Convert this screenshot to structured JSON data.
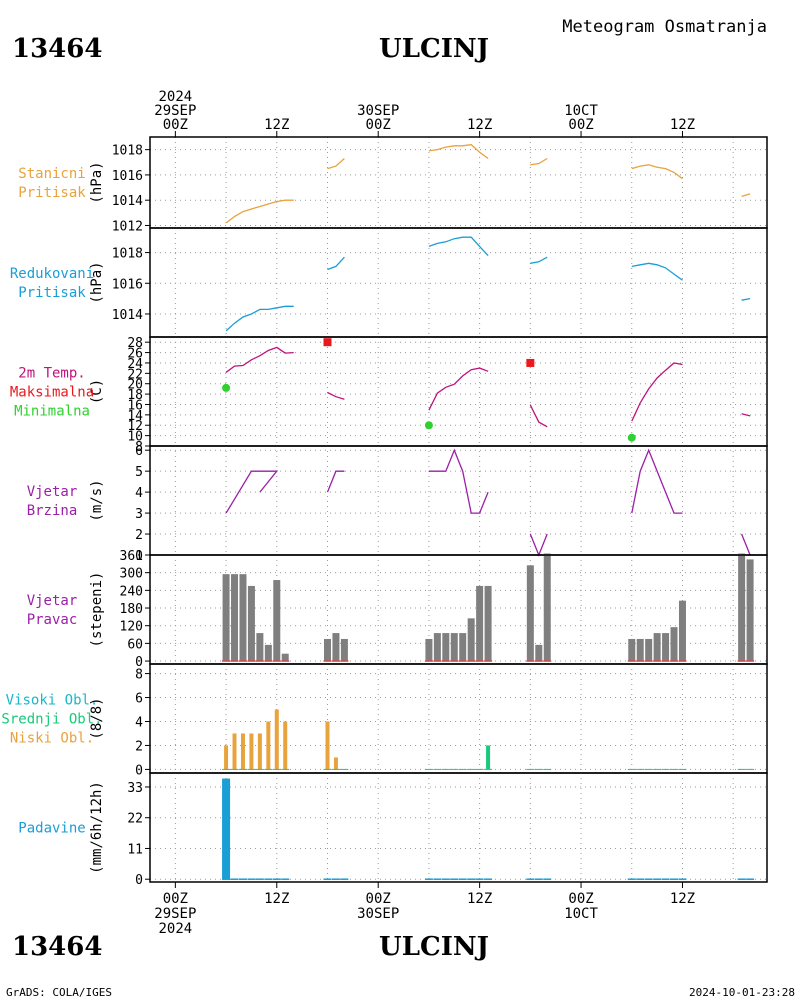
{
  "header": {
    "station_id": "13464",
    "station_name": "ULCINJ",
    "product": "Meteogram Osmatranja"
  },
  "footer": {
    "station_id": "13464",
    "station_name": "ULCINJ",
    "credit": "GrADS: COLA/IGES",
    "timestamp": "2024-10-01-23:28"
  },
  "time_axis": {
    "year": "2024",
    "top": [
      {
        "hour": 0,
        "lines": [
          "2024",
          "29SEP",
          "00Z"
        ]
      },
      {
        "hour": 12,
        "lines": [
          "12Z"
        ]
      },
      {
        "hour": 24,
        "lines": [
          "30SEP",
          "00Z"
        ]
      },
      {
        "hour": 36,
        "lines": [
          "12Z"
        ]
      },
      {
        "hour": 48,
        "lines": [
          "10CT",
          "00Z"
        ]
      },
      {
        "hour": 60,
        "lines": [
          "12Z"
        ]
      }
    ],
    "bottom": [
      {
        "hour": 0,
        "lines": [
          "00Z",
          "29SEP",
          "2024"
        ]
      },
      {
        "hour": 12,
        "lines": [
          "12Z"
        ]
      },
      {
        "hour": 24,
        "lines": [
          "00Z",
          "30SEP"
        ]
      },
      {
        "hour": 36,
        "lines": [
          "12Z"
        ]
      },
      {
        "hour": 48,
        "lines": [
          "00Z",
          "10CT"
        ]
      },
      {
        "hour": 60,
        "lines": [
          "12Z"
        ]
      }
    ],
    "xlim_hours": [
      -3,
      70
    ],
    "grid_hours": [
      0,
      6,
      12,
      18,
      24,
      30,
      36,
      42,
      48,
      54,
      60,
      66
    ]
  },
  "colors": {
    "station_pressure": "#e8a33d",
    "reduced_pressure": "#1a9ed6",
    "temperature": "#c0137c",
    "tmax": "#e8191e",
    "tmin": "#2fd12f",
    "wind": "#9b1fa8",
    "wind_dir_bar": "#7f7f7f",
    "wind_dir_base": "#d84848",
    "cloud_high": "#1ab7c9",
    "cloud_mid": "#18c97c",
    "cloud_low": "#e8a33d",
    "precip": "#1a9ed6"
  },
  "chart_data": [
    {
      "type": "line",
      "panel": "station_pressure",
      "label_lines": [
        "Stanicni",
        "Pritisak"
      ],
      "ylabel": "(hPa)",
      "ylim": [
        1011.8,
        1019
      ],
      "yticks": [
        1012,
        1014,
        1016,
        1018
      ],
      "series": [
        {
          "values": [
            [
              6,
              1012.2
            ],
            [
              7,
              1012.7
            ],
            [
              8,
              1013.1
            ],
            [
              9,
              1013.3
            ],
            [
              10,
              1013.5
            ],
            [
              11,
              1013.7
            ],
            [
              12,
              1013.9
            ],
            [
              13,
              1014.0
            ],
            [
              14,
              1014.0
            ]
          ]
        },
        {
          "values": [
            [
              18,
              1016.5
            ],
            [
              19,
              1016.7
            ],
            [
              20,
              1017.3
            ]
          ]
        },
        {
          "values": [
            [
              30,
              1017.9
            ],
            [
              31,
              1018.0
            ],
            [
              32,
              1018.2
            ],
            [
              33,
              1018.3
            ],
            [
              34,
              1018.3
            ],
            [
              35,
              1018.4
            ],
            [
              36,
              1017.8
            ],
            [
              37,
              1017.3
            ]
          ]
        },
        {
          "values": [
            [
              42,
              1016.8
            ],
            [
              43,
              1016.9
            ],
            [
              44,
              1017.3
            ]
          ]
        },
        {
          "values": [
            [
              54,
              1016.5
            ],
            [
              55,
              1016.7
            ],
            [
              56,
              1016.8
            ],
            [
              57,
              1016.6
            ],
            [
              58,
              1016.5
            ],
            [
              59,
              1016.2
            ],
            [
              60,
              1015.7
            ]
          ]
        },
        {
          "values": [
            [
              67,
              1014.3
            ],
            [
              68,
              1014.5
            ]
          ]
        }
      ]
    },
    {
      "type": "line",
      "panel": "reduced_pressure",
      "label_lines": [
        "Redukovani",
        "Pritisak"
      ],
      "ylabel": "(hPa)",
      "ylim": [
        1012.5,
        1019.6
      ],
      "yticks": [
        1014,
        1016,
        1018
      ],
      "series": [
        {
          "values": [
            [
              6,
              1012.9
            ],
            [
              7,
              1013.4
            ],
            [
              8,
              1013.8
            ],
            [
              9,
              1014.0
            ],
            [
              10,
              1014.3
            ],
            [
              11,
              1014.3
            ],
            [
              12,
              1014.4
            ],
            [
              13,
              1014.5
            ],
            [
              14,
              1014.5
            ]
          ]
        },
        {
          "values": [
            [
              18,
              1016.9
            ],
            [
              19,
              1017.1
            ],
            [
              20,
              1017.7
            ]
          ]
        },
        {
          "values": [
            [
              30,
              1018.4
            ],
            [
              31,
              1018.6
            ],
            [
              32,
              1018.7
            ],
            [
              33,
              1018.9
            ],
            [
              34,
              1019.0
            ],
            [
              35,
              1019.0
            ],
            [
              36,
              1018.4
            ],
            [
              37,
              1017.8
            ]
          ]
        },
        {
          "values": [
            [
              42,
              1017.3
            ],
            [
              43,
              1017.4
            ],
            [
              44,
              1017.7
            ]
          ]
        },
        {
          "values": [
            [
              54,
              1017.1
            ],
            [
              55,
              1017.2
            ],
            [
              56,
              1017.3
            ],
            [
              57,
              1017.2
            ],
            [
              58,
              1017.0
            ],
            [
              59,
              1016.6
            ],
            [
              60,
              1016.2
            ]
          ]
        },
        {
          "values": [
            [
              67,
              1014.9
            ],
            [
              68,
              1015.0
            ]
          ]
        }
      ]
    },
    {
      "type": "line",
      "panel": "temperature",
      "label_lines": [
        "2m Temp.",
        "Maksimalna",
        "Minimalna"
      ],
      "ylabel": "(C)",
      "ylim": [
        8,
        29
      ],
      "yticks": [
        8,
        10,
        12,
        14,
        16,
        18,
        20,
        22,
        24,
        26,
        28
      ],
      "series": [
        {
          "values": [
            [
              6,
              22.2
            ],
            [
              7,
              23.4
            ],
            [
              8,
              23.5
            ],
            [
              9,
              24.6
            ],
            [
              10,
              25.4
            ],
            [
              11,
              26.4
            ],
            [
              12,
              27.0
            ],
            [
              13,
              25.9
            ],
            [
              14,
              26.0
            ]
          ]
        },
        {
          "values": [
            [
              18,
              18.3
            ],
            [
              19,
              17.5
            ],
            [
              20,
              17.0
            ]
          ]
        },
        {
          "values": [
            [
              30,
              14.9
            ],
            [
              31,
              18.2
            ],
            [
              32,
              19.3
            ],
            [
              33,
              19.9
            ],
            [
              34,
              21.5
            ],
            [
              35,
              22.7
            ],
            [
              36,
              23.0
            ],
            [
              37,
              22.4
            ]
          ]
        },
        {
          "values": [
            [
              42,
              15.9
            ],
            [
              43,
              12.6
            ],
            [
              44,
              11.7
            ]
          ]
        },
        {
          "values": [
            [
              54,
              12.8
            ],
            [
              55,
              16.3
            ],
            [
              56,
              19.0
            ],
            [
              57,
              21.1
            ],
            [
              58,
              22.6
            ],
            [
              59,
              24.0
            ],
            [
              60,
              23.7
            ]
          ]
        },
        {
          "values": [
            [
              67,
              14.2
            ],
            [
              68,
              13.8
            ]
          ]
        }
      ],
      "tmax_points": [
        [
          18,
          28.0
        ],
        [
          42,
          24.0
        ]
      ],
      "tmin_points": [
        [
          6,
          19.2
        ],
        [
          30,
          12.0
        ],
        [
          54,
          9.6
        ]
      ]
    },
    {
      "type": "line",
      "panel": "wind_speed",
      "label_lines": [
        "Vjetar",
        "Brzina"
      ],
      "ylabel": "(m/s)",
      "ylim": [
        1,
        6.2
      ],
      "yticks": [
        1,
        2,
        3,
        4,
        5,
        6
      ],
      "series": [
        {
          "values": [
            [
              6,
              3
            ],
            [
              9,
              5
            ],
            [
              12,
              5
            ],
            [
              10,
              4
            ]
          ]
        },
        {
          "values": [
            [
              18,
              4
            ],
            [
              19,
              5
            ],
            [
              20,
              5
            ]
          ]
        },
        {
          "values": [
            [
              30,
              5
            ],
            [
              31,
              5
            ],
            [
              32,
              5
            ],
            [
              33,
              6
            ],
            [
              34,
              5
            ],
            [
              35,
              3
            ],
            [
              36,
              3
            ],
            [
              37,
              4
            ]
          ]
        },
        {
          "values": [
            [
              42,
              2
            ],
            [
              43,
              1
            ],
            [
              44,
              2
            ]
          ]
        },
        {
          "values": [
            [
              54,
              3
            ],
            [
              55,
              5
            ],
            [
              56,
              6
            ],
            [
              59,
              3
            ],
            [
              60,
              3
            ]
          ]
        },
        {
          "values": [
            [
              67,
              2
            ],
            [
              68,
              1
            ]
          ]
        }
      ]
    },
    {
      "type": "bar",
      "panel": "wind_direction",
      "label_lines": [
        "Vjetar",
        "Pravac"
      ],
      "ylabel": "(stepeni)",
      "ylim": [
        -10,
        360
      ],
      "yticks": [
        0,
        60,
        120,
        180,
        240,
        300,
        360
      ],
      "x": [
        6,
        7,
        8,
        9,
        10,
        11,
        12,
        13,
        18,
        19,
        20,
        30,
        31,
        32,
        33,
        34,
        35,
        36,
        37,
        42,
        43,
        44,
        54,
        55,
        56,
        57,
        58,
        59,
        60,
        67,
        68
      ],
      "values": [
        295,
        295,
        295,
        255,
        95,
        55,
        275,
        25,
        75,
        95,
        75,
        75,
        95,
        95,
        95,
        95,
        145,
        255,
        255,
        325,
        55,
        365,
        75,
        75,
        75,
        95,
        95,
        115,
        205,
        365,
        345
      ]
    },
    {
      "type": "bar",
      "panel": "clouds",
      "label_lines": [
        "Visoki Obl.",
        "Srednji Obl.",
        "Niski Obl."
      ],
      "ylabel": "(8/8)",
      "ylim": [
        -0.3,
        8.8
      ],
      "yticks": [
        0,
        2,
        4,
        6,
        8
      ],
      "series": [
        {
          "name": "Niski Obl.",
          "x": [
            6,
            7,
            8,
            9,
            10,
            11,
            12,
            13,
            18,
            19
          ],
          "values": [
            2,
            3,
            3,
            3,
            3,
            4,
            5,
            4,
            4,
            1
          ]
        },
        {
          "name": "Srednji Obl.",
          "x": [
            37
          ],
          "values": [
            2
          ]
        }
      ]
    },
    {
      "type": "bar",
      "panel": "precipitation",
      "label_lines": [
        "Padavine"
      ],
      "ylabel": "(mm/6h/12h)",
      "ylim": [
        -1,
        38
      ],
      "yticks": [
        0,
        11,
        22,
        33
      ],
      "x": [
        6
      ],
      "values": [
        36
      ],
      "zero_markers_hours": [
        6,
        7,
        8,
        9,
        10,
        11,
        12,
        13,
        18,
        19,
        20,
        30,
        31,
        32,
        33,
        34,
        35,
        36,
        37,
        42,
        43,
        44,
        54,
        55,
        56,
        57,
        58,
        59,
        60,
        67,
        68
      ]
    }
  ]
}
